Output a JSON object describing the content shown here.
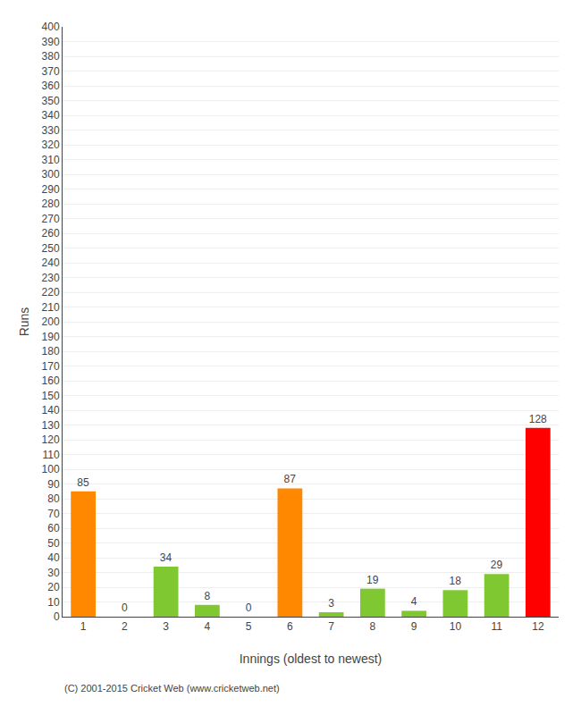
{
  "chart_data": {
    "type": "bar",
    "xlabel": "Innings (oldest to newest)",
    "ylabel": "Runs",
    "categories": [
      "1",
      "2",
      "3",
      "4",
      "5",
      "6",
      "7",
      "8",
      "9",
      "10",
      "11",
      "12"
    ],
    "values": [
      85,
      0,
      34,
      8,
      0,
      87,
      3,
      19,
      4,
      18,
      29,
      128
    ],
    "colors": [
      "#ff8800",
      "#7fc832",
      "#7fc832",
      "#7fc832",
      "#7fc832",
      "#ff8800",
      "#7fc832",
      "#7fc832",
      "#7fc832",
      "#7fc832",
      "#7fc832",
      "#ff0000"
    ],
    "ylim": [
      0,
      400
    ],
    "yticks": [
      0,
      10,
      20,
      30,
      40,
      50,
      60,
      70,
      80,
      90,
      100,
      110,
      120,
      130,
      140,
      150,
      160,
      170,
      180,
      190,
      200,
      210,
      220,
      230,
      240,
      250,
      260,
      270,
      280,
      290,
      300,
      310,
      320,
      330,
      340,
      350,
      360,
      370,
      380,
      390,
      400
    ],
    "grid": true,
    "data_labels": true,
    "footer": "(C) 2001-2015 Cricket Web (www.cricketweb.net)"
  }
}
